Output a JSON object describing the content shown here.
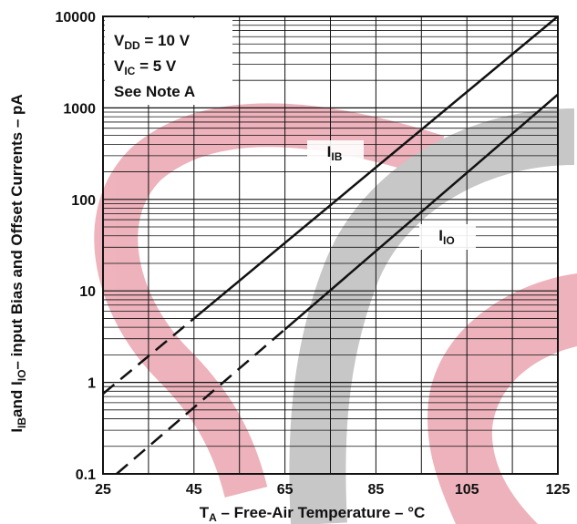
{
  "chart_data": {
    "type": "line",
    "log_y": true,
    "log_minor_grid": true,
    "xlim": [
      25,
      125
    ],
    "ylim": [
      0.1,
      10000
    ],
    "xticks": [
      25,
      45,
      65,
      85,
      105,
      125
    ],
    "xgrid": [
      35,
      55,
      75,
      95,
      115
    ],
    "yticks": [
      0.1,
      1,
      10,
      100,
      1000,
      10000
    ],
    "x_label": [
      {
        "text": "T"
      },
      {
        "text": "A",
        "sub": true
      },
      {
        "text": " – Free-Air Temperature – °C"
      }
    ],
    "y_label": [
      {
        "text": "I"
      },
      {
        "text": "IB",
        "sub": true
      },
      {
        "text": "and I"
      },
      {
        "text": "IO",
        "sub": true
      },
      {
        "text": "– input Bias and Offset Currents – pA"
      }
    ],
    "conditions": [
      [
        {
          "text": "V"
        },
        {
          "text": "DD",
          "sub": true
        },
        {
          "text": " = 10 V"
        }
      ],
      [
        {
          "text": "V"
        },
        {
          "text": "IC",
          "sub": true
        },
        {
          "text": " = 5 V"
        }
      ],
      [
        {
          "text": "See Note A"
        }
      ]
    ],
    "series": [
      {
        "name": [
          {
            "text": "I"
          },
          {
            "text": "IB",
            "sub": true
          }
        ],
        "color": "#111111",
        "x": [
          25,
          45,
          125
        ],
        "values": [
          0.75,
          5.0,
          10000
        ],
        "segment_styles": [
          "dashed",
          "solid"
        ]
      },
      {
        "name": [
          {
            "text": "I"
          },
          {
            "text": "IO",
            "sub": true
          }
        ],
        "color": "#111111",
        "x": [
          28,
          65,
          125
        ],
        "values": [
          0.1,
          3.8,
          1400
        ],
        "segment_styles": [
          "dashed",
          "solid"
        ]
      }
    ]
  }
}
